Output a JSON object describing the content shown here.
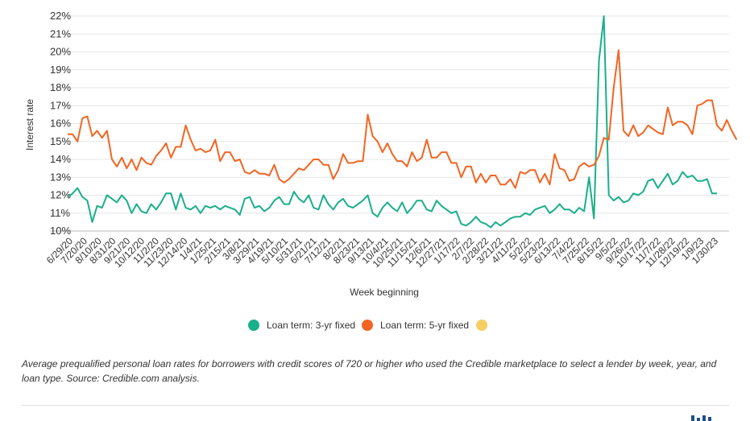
{
  "chart_data": {
    "type": "line",
    "title": "",
    "xlabel": "Week beginning",
    "ylabel": "Interest rate",
    "ylim": [
      10,
      22
    ],
    "yticks": [
      "10%",
      "11%",
      "12%",
      "13%",
      "14%",
      "15%",
      "16%",
      "17%",
      "18%",
      "19%",
      "20%",
      "21%",
      "22%"
    ],
    "grid": "horizontal",
    "legend_position": "bottom",
    "x_tick_labels": [
      "6/29/20",
      "7/20/20",
      "8/10/20",
      "8/31/20",
      "9/21/20",
      "10/12/20",
      "11/2/20",
      "11/23/20",
      "12/14/20",
      "1/4/21",
      "1/25/21",
      "2/15/21",
      "3/8/21",
      "3/29/21",
      "4/19/21",
      "5/10/21",
      "5/31/21",
      "6/21/21",
      "7/12/21",
      "8/2/21",
      "8/23/21",
      "9/13/21",
      "10/4/21",
      "10/25/21",
      "11/15/21",
      "12/6/21",
      "12/27/21",
      "1/17/22",
      "2/7/22",
      "2/28/22",
      "3/21/22",
      "4/11/22",
      "5/2/22",
      "5/23/22",
      "6/13/22",
      "7/4/22",
      "7/25/22",
      "8/15/22",
      "9/5/22",
      "9/26/22",
      "10/17/22",
      "11/7/22",
      "11/28/22",
      "12/19/22",
      "1/9/23",
      "1/30/23"
    ],
    "series": [
      {
        "name": "Loan term: 3-yr fixed",
        "color": "#1aaf8b",
        "values": [
          11.9,
          12.1,
          12.4,
          11.9,
          11.7,
          10.5,
          11.4,
          11.3,
          12.0,
          11.8,
          11.6,
          12.0,
          11.7,
          11.0,
          11.5,
          11.1,
          11.0,
          11.5,
          11.2,
          11.6,
          12.1,
          12.1,
          11.2,
          12.1,
          11.3,
          11.2,
          11.4,
          11.0,
          11.4,
          11.3,
          11.4,
          11.2,
          11.4,
          11.3,
          11.2,
          10.9,
          11.8,
          11.9,
          11.3,
          11.4,
          11.1,
          11.3,
          11.7,
          11.9,
          11.5,
          11.5,
          12.2,
          11.8,
          11.6,
          12.0,
          11.3,
          11.2,
          12.0,
          11.5,
          11.2,
          11.6,
          11.8,
          11.4,
          11.3,
          11.5,
          11.7,
          12.0,
          11.0,
          10.8,
          11.3,
          11.6,
          11.3,
          11.1,
          11.6,
          11.0,
          11.3,
          11.7,
          11.7,
          11.2,
          11.1,
          11.7,
          11.4,
          11.2,
          11.0,
          11.1,
          10.4,
          10.3,
          10.5,
          10.8,
          10.5,
          10.4,
          10.2,
          10.5,
          10.3,
          10.5,
          10.7,
          10.8,
          10.8,
          11.0,
          10.9,
          11.2,
          11.3,
          11.4,
          11.0,
          11.2,
          11.5,
          11.2,
          11.2,
          11.0,
          11.3,
          11.1,
          13.0,
          10.7,
          19.5,
          22.0,
          12.0,
          11.7,
          11.9,
          11.6,
          11.7,
          12.1,
          12.0,
          12.2,
          12.8,
          12.9,
          12.4,
          12.8,
          13.2,
          12.6,
          12.8,
          13.3,
          13.0,
          13.1,
          12.8,
          12.8,
          12.9,
          12.1,
          12.1
        ]
      },
      {
        "name": "Loan term: 5-yr fixed",
        "color": "#f26522",
        "values": [
          15.4,
          15.4,
          15.0,
          16.3,
          16.4,
          15.3,
          15.6,
          15.2,
          15.6,
          14.0,
          13.6,
          14.1,
          13.5,
          14.0,
          13.4,
          14.1,
          13.8,
          13.7,
          14.2,
          14.5,
          14.9,
          14.1,
          14.7,
          14.7,
          15.9,
          15.1,
          14.5,
          14.6,
          14.4,
          14.5,
          15.1,
          13.9,
          14.4,
          14.4,
          13.9,
          14.0,
          13.3,
          13.2,
          13.4,
          13.2,
          13.2,
          13.1,
          13.7,
          12.9,
          12.7,
          12.9,
          13.2,
          13.5,
          13.4,
          13.7,
          14.0,
          14.0,
          13.7,
          13.7,
          12.9,
          13.4,
          14.3,
          13.8,
          13.8,
          13.9,
          13.9,
          16.5,
          15.3,
          15.0,
          14.4,
          14.9,
          14.3,
          13.9,
          13.9,
          13.6,
          14.4,
          13.9,
          14.1,
          15.1,
          14.1,
          14.1,
          14.4,
          14.4,
          13.8,
          13.8,
          13.0,
          13.6,
          13.6,
          12.7,
          13.2,
          12.7,
          13.1,
          13.1,
          12.6,
          12.6,
          12.9,
          12.4,
          13.3,
          13.2,
          13.4,
          13.4,
          12.7,
          13.2,
          12.6,
          14.3,
          13.5,
          13.4,
          12.8,
          12.9,
          13.6,
          13.8,
          13.6,
          13.7,
          14.2,
          15.2,
          15.1,
          18.0,
          20.1,
          15.6,
          15.3,
          15.9,
          15.3,
          15.5,
          15.9,
          15.7,
          15.5,
          15.4,
          16.9,
          15.9,
          16.1,
          16.1,
          15.9,
          15.4,
          17.0,
          17.1,
          17.3,
          17.3,
          15.9,
          15.6,
          16.2,
          15.6,
          15.1
        ]
      }
    ],
    "legend": [
      {
        "label": "Loan term: 3-yr fixed",
        "color": "#1aaf8b"
      },
      {
        "label": "Loan term: 5-yr fixed",
        "color": "#f26522"
      },
      {
        "label": "",
        "color": "#f5cf63"
      }
    ]
  },
  "caption": "Average prequalified personal loan rates for borrowers with credit scores of 720 or higher who used the Credible marketplace to select a lender by week, year, and loan type. Source: Credible.com analysis."
}
